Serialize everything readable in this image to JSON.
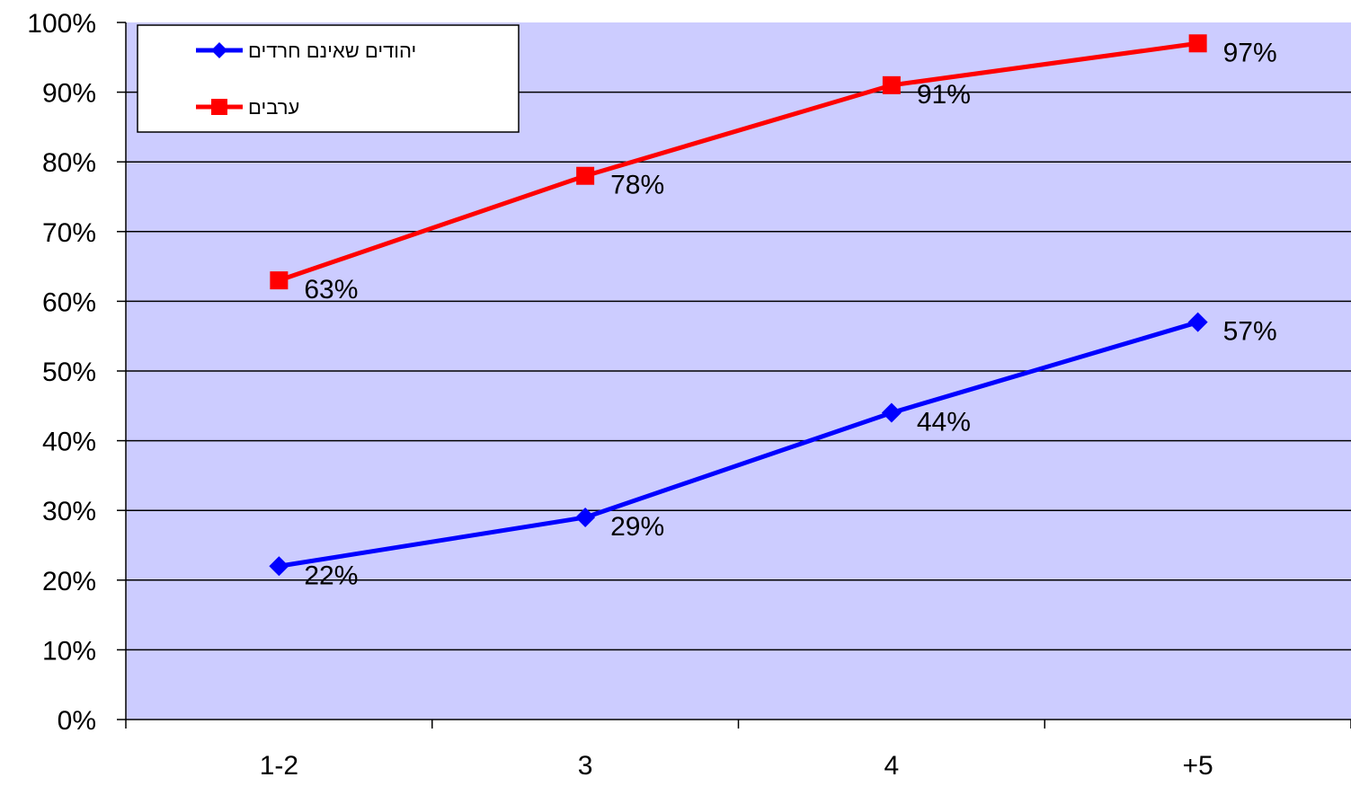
{
  "chart_data": {
    "type": "line",
    "categories": [
      "1-2",
      "3",
      "4",
      "+5"
    ],
    "series": [
      {
        "name": "יהודים שאינם חרדים",
        "values": [
          22,
          29,
          44,
          57
        ],
        "labels": [
          "22%",
          "29%",
          "44%",
          "57%"
        ],
        "color": "#0000ff",
        "marker": "diamond"
      },
      {
        "name": "ערבים",
        "values": [
          63,
          78,
          91,
          97
        ],
        "labels": [
          "63%",
          "78%",
          "91%",
          "97%"
        ],
        "color": "#ff0000",
        "marker": "square"
      }
    ],
    "yticks": [
      "0%",
      "10%",
      "20%",
      "30%",
      "40%",
      "50%",
      "60%",
      "70%",
      "80%",
      "90%",
      "100%"
    ],
    "ylim": [
      0,
      100
    ],
    "grid": true,
    "legend_position": "top-left",
    "plot_background": "#ccccff"
  }
}
